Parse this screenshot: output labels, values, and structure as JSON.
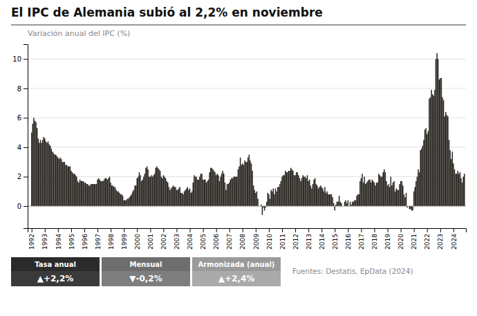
{
  "chart_data": {
    "type": "bar",
    "title": "El IPC de Alemania subió al 2,2% en noviembre",
    "subtitle": "Variación anual del IPC (%)",
    "source": "Fuentes: Destatis, EpData (2024)",
    "annotations": [
      {
        "label": "Tasa anual",
        "text": "▲+2,2%"
      },
      {
        "label": "Mensual",
        "text": "▼-0,2%"
      },
      {
        "label": "Armonizada (anual)",
        "text": "▲+2,4%"
      }
    ],
    "color": "#231f1a",
    "grid": true,
    "xlim": [
      1991.7,
      2024.95
    ],
    "xticks": [
      1992,
      1993,
      1994,
      1995,
      1996,
      1997,
      1998,
      1999,
      2000,
      2001,
      2002,
      2003,
      2004,
      2005,
      2006,
      2007,
      2008,
      2009,
      2010,
      2011,
      2012,
      2013,
      2014,
      2015,
      2016,
      2017,
      2018,
      2019,
      2020,
      2021,
      2022,
      2023,
      2024
    ],
    "ylim": [
      -1.5,
      11
    ],
    "yticks": [
      0,
      2,
      4,
      6,
      8,
      10
    ],
    "x": [
      1992,
      1992.0833333333333,
      1992.1666666666667,
      1992.25,
      1992.3333333333333,
      1992.4166666666667,
      1992.5,
      1992.5833333333333,
      1992.6666666666667,
      1992.75,
      1992.8333333333333,
      1992.9166666666667,
      1993,
      1993.0833333333333,
      1993.1666666666667,
      1993.25,
      1993.3333333333333,
      1993.4166666666667,
      1993.5,
      1993.5833333333333,
      1993.6666666666667,
      1993.75,
      1993.8333333333333,
      1993.9166666666667,
      1994,
      1994.0833333333333,
      1994.1666666666667,
      1994.25,
      1994.3333333333333,
      1994.4166666666667,
      1994.5,
      1994.5833333333333,
      1994.6666666666667,
      1994.75,
      1994.8333333333333,
      1994.9166666666667,
      1995,
      1995.0833333333333,
      1995.1666666666667,
      1995.25,
      1995.3333333333333,
      1995.4166666666667,
      1995.5,
      1995.5833333333333,
      1995.6666666666667,
      1995.75,
      1995.8333333333333,
      1995.9166666666667,
      1996,
      1996.0833333333333,
      1996.1666666666667,
      1996.25,
      1996.3333333333333,
      1996.4166666666667,
      1996.5,
      1996.5833333333333,
      1996.6666666666667,
      1996.75,
      1996.8333333333333,
      1996.9166666666667,
      1997,
      1997.0833333333333,
      1997.1666666666667,
      1997.25,
      1997.3333333333333,
      1997.4166666666667,
      1997.5,
      1997.5833333333333,
      1997.6666666666667,
      1997.75,
      1997.8333333333333,
      1997.9166666666667,
      1998,
      1998.0833333333333,
      1998.1666666666667,
      1998.25,
      1998.3333333333333,
      1998.4166666666667,
      1998.5,
      1998.5833333333333,
      1998.6666666666667,
      1998.75,
      1998.8333333333333,
      1998.9166666666667,
      1999,
      1999.0833333333333,
      1999.1666666666667,
      1999.25,
      1999.3333333333333,
      1999.4166666666667,
      1999.5,
      1999.5833333333333,
      1999.6666666666667,
      1999.75,
      1999.8333333333333,
      1999.9166666666667,
      2000,
      2000.0833333333333,
      2000.1666666666667,
      2000.25,
      2000.3333333333333,
      2000.4166666666667,
      2000.5,
      2000.5833333333333,
      2000.6666666666667,
      2000.75,
      2000.8333333333333,
      2000.9166666666667,
      2001,
      2001.0833333333333,
      2001.1666666666667,
      2001.25,
      2001.3333333333333,
      2001.4166666666667,
      2001.5,
      2001.5833333333333,
      2001.6666666666667,
      2001.75,
      2001.8333333333333,
      2001.9166666666667,
      2002,
      2002.0833333333333,
      2002.1666666666667,
      2002.25,
      2002.3333333333333,
      2002.4166666666667,
      2002.5,
      2002.5833333333333,
      2002.6666666666667,
      2002.75,
      2002.8333333333333,
      2002.9166666666667,
      2003,
      2003.0833333333333,
      2003.1666666666667,
      2003.25,
      2003.3333333333333,
      2003.4166666666667,
      2003.5,
      2003.5833333333333,
      2003.6666666666667,
      2003.75,
      2003.8333333333333,
      2003.9166666666667,
      2004,
      2004.0833333333333,
      2004.1666666666667,
      2004.25,
      2004.3333333333333,
      2004.4166666666667,
      2004.5,
      2004.5833333333333,
      2004.6666666666667,
      2004.75,
      2004.8333333333333,
      2004.9166666666667,
      2005,
      2005.0833333333333,
      2005.1666666666667,
      2005.25,
      2005.3333333333333,
      2005.4166666666667,
      2005.5,
      2005.5833333333333,
      2005.6666666666667,
      2005.75,
      2005.8333333333333,
      2005.9166666666667,
      2006,
      2006.0833333333333,
      2006.1666666666667,
      2006.25,
      2006.3333333333333,
      2006.4166666666667,
      2006.5,
      2006.5833333333333,
      2006.6666666666667,
      2006.75,
      2006.8333333333333,
      2006.9166666666667,
      2007,
      2007.0833333333333,
      2007.1666666666667,
      2007.25,
      2007.3333333333333,
      2007.4166666666667,
      2007.5,
      2007.5833333333333,
      2007.6666666666667,
      2007.75,
      2007.8333333333333,
      2007.9166666666667,
      2008,
      2008.0833333333333,
      2008.1666666666667,
      2008.25,
      2008.3333333333333,
      2008.4166666666667,
      2008.5,
      2008.5833333333333,
      2008.6666666666667,
      2008.75,
      2008.8333333333333,
      2008.9166666666667,
      2009,
      2009.0833333333333,
      2009.1666666666667,
      2009.25,
      2009.3333333333333,
      2009.4166666666667,
      2009.5,
      2009.5833333333333,
      2009.6666666666667,
      2009.75,
      2009.8333333333333,
      2009.9166666666667,
      2010,
      2010.0833333333333,
      2010.1666666666667,
      2010.25,
      2010.3333333333333,
      2010.4166666666667,
      2010.5,
      2010.5833333333333,
      2010.6666666666667,
      2010.75,
      2010.8333333333333,
      2010.9166666666667,
      2011,
      2011.0833333333333,
      2011.1666666666667,
      2011.25,
      2011.3333333333333,
      2011.4166666666667,
      2011.5,
      2011.5833333333333,
      2011.6666666666667,
      2011.75,
      2011.8333333333333,
      2011.9166666666667,
      2012,
      2012.0833333333333,
      2012.1666666666667,
      2012.25,
      2012.3333333333333,
      2012.4166666666667,
      2012.5,
      2012.5833333333333,
      2012.6666666666667,
      2012.75,
      2012.8333333333333,
      2012.9166666666667,
      2013,
      2013.0833333333333,
      2013.1666666666667,
      2013.25,
      2013.3333333333333,
      2013.4166666666667,
      2013.5,
      2013.5833333333333,
      2013.6666666666667,
      2013.75,
      2013.8333333333333,
      2013.9166666666667,
      2014,
      2014.0833333333333,
      2014.1666666666667,
      2014.25,
      2014.3333333333333,
      2014.4166666666667,
      2014.5,
      2014.5833333333333,
      2014.6666666666667,
      2014.75,
      2014.8333333333333,
      2014.9166666666667,
      2015,
      2015.0833333333333,
      2015.1666666666667,
      2015.25,
      2015.3333333333333,
      2015.4166666666667,
      2015.5,
      2015.5833333333333,
      2015.6666666666667,
      2015.75,
      2015.8333333333333,
      2015.9166666666667,
      2016,
      2016.0833333333333,
      2016.1666666666667,
      2016.25,
      2016.3333333333333,
      2016.4166666666667,
      2016.5,
      2016.5833333333333,
      2016.6666666666667,
      2016.75,
      2016.8333333333333,
      2016.9166666666667,
      2017,
      2017.0833333333333,
      2017.1666666666667,
      2017.25,
      2017.3333333333333,
      2017.4166666666667,
      2017.5,
      2017.5833333333333,
      2017.6666666666667,
      2017.75,
      2017.8333333333333,
      2017.9166666666667,
      2018,
      2018.0833333333333,
      2018.1666666666667,
      2018.25,
      2018.3333333333333,
      2018.4166666666667,
      2018.5,
      2018.5833333333333,
      2018.6666666666667,
      2018.75,
      2018.8333333333333,
      2018.9166666666667,
      2019,
      2019.0833333333333,
      2019.1666666666667,
      2019.25,
      2019.3333333333333,
      2019.4166666666667,
      2019.5,
      2019.5833333333333,
      2019.6666666666667,
      2019.75,
      2019.8333333333333,
      2019.9166666666667,
      2020,
      2020.0833333333333,
      2020.1666666666667,
      2020.25,
      2020.3333333333333,
      2020.4166666666667,
      2020.5,
      2020.5833333333333,
      2020.6666666666667,
      2020.75,
      2020.8333333333333,
      2020.9166666666667,
      2021,
      2021.0833333333333,
      2021.1666666666667,
      2021.25,
      2021.3333333333333,
      2021.4166666666667,
      2021.5,
      2021.5833333333333,
      2021.6666666666667,
      2021.75,
      2021.8333333333333,
      2021.9166666666667,
      2022,
      2022.0833333333333,
      2022.1666666666667,
      2022.25,
      2022.3333333333333,
      2022.4166666666667,
      2022.5,
      2022.5833333333333,
      2022.6666666666667,
      2022.75,
      2022.8333333333333,
      2022.9166666666667,
      2023,
      2023.0833333333333,
      2023.1666666666667,
      2023.25,
      2023.3333333333333,
      2023.4166666666667,
      2023.5,
      2023.5833333333333,
      2023.6666666666667,
      2023.75,
      2023.8333333333333,
      2023.9166666666667,
      2024,
      2024.0833333333333,
      2024.1666666666667,
      2024.25,
      2024.3333333333333,
      2024.4166666666667,
      2024.5,
      2024.5833333333333,
      2024.6666666666667,
      2024.75,
      2024.8333333333333
    ],
    "values": [
      5.0,
      5.6,
      6.0,
      5.8,
      5.7,
      5.3,
      4.6,
      4.3,
      4.5,
      4.3,
      4.5,
      4.7,
      4.6,
      4.4,
      4.3,
      4.4,
      4.2,
      4.1,
      3.9,
      3.7,
      3.6,
      3.5,
      3.5,
      3.4,
      3.3,
      3.2,
      3.3,
      3.2,
      3.0,
      3.0,
      3.0,
      2.8,
      2.8,
      2.7,
      2.7,
      2.7,
      2.4,
      2.3,
      2.2,
      2.2,
      2.1,
      2.0,
      1.7,
      1.6,
      1.8,
      1.7,
      1.7,
      1.7,
      1.6,
      1.6,
      1.5,
      1.5,
      1.4,
      1.4,
      1.5,
      1.5,
      1.5,
      1.5,
      1.5,
      1.5,
      1.8,
      1.9,
      1.8,
      1.7,
      1.7,
      1.7,
      1.8,
      1.9,
      1.9,
      1.8,
      1.9,
      2.0,
      1.6,
      1.4,
      1.4,
      1.3,
      1.3,
      1.1,
      1.0,
      1.0,
      0.9,
      0.8,
      0.8,
      0.7,
      0.4,
      0.4,
      0.4,
      0.5,
      0.5,
      0.6,
      0.7,
      0.8,
      1.0,
      1.1,
      1.4,
      1.4,
      1.9,
      2.0,
      2.3,
      2.1,
      1.7,
      1.8,
      2.0,
      2.2,
      2.6,
      2.7,
      2.5,
      2.0,
      2.0,
      2.1,
      2.0,
      2.1,
      2.2,
      2.6,
      2.7,
      2.6,
      2.5,
      2.4,
      2.0,
      1.9,
      2.1,
      2.0,
      1.9,
      1.7,
      1.6,
      1.3,
      1.1,
      1.2,
      1.3,
      1.4,
      1.3,
      1.3,
      1.1,
      1.1,
      1.2,
      1.3,
      0.9,
      0.9,
      0.8,
      1.0,
      1.1,
      1.2,
      1.3,
      1.1,
      1.2,
      0.9,
      1.0,
      1.6,
      2.1,
      2.0,
      2.0,
      1.8,
      1.8,
      2.0,
      2.2,
      2.2,
      1.8,
      1.8,
      1.8,
      1.6,
      1.7,
      1.8,
      2.3,
      2.6,
      2.6,
      2.5,
      2.4,
      2.3,
      2.1,
      2.2,
      2.1,
      1.7,
      2.0,
      2.2,
      2.4,
      2.2,
      1.6,
      1.1,
      1.5,
      1.5,
      1.6,
      1.8,
      1.9,
      1.9,
      2.0,
      2.0,
      2.0,
      2.0,
      2.5,
      2.7,
      3.3,
      2.8,
      2.9,
      2.8,
      3.1,
      3.0,
      3.0,
      3.3,
      3.5,
      3.1,
      2.9,
      2.4,
      1.4,
      1.1,
      0.9,
      1.0,
      0.5,
      0.0,
      0.0,
      0.1,
      -0.6,
      -0.1,
      -0.3,
      -0.1,
      0.3,
      0.9,
      0.8,
      0.5,
      1.1,
      1.0,
      1.2,
      0.8,
      1.2,
      1.0,
      1.3,
      1.3,
      1.5,
      1.7,
      2.0,
      2.1,
      2.1,
      2.4,
      2.3,
      2.3,
      2.4,
      2.4,
      2.6,
      2.5,
      2.4,
      2.1,
      2.1,
      2.3,
      2.3,
      2.1,
      1.9,
      1.7,
      1.9,
      2.1,
      2.0,
      2.0,
      1.9,
      2.1,
      1.7,
      1.8,
      1.4,
      1.2,
      1.5,
      1.8,
      1.9,
      1.5,
      1.4,
      1.2,
      1.3,
      1.4,
      1.3,
      1.2,
      1.0,
      1.3,
      0.9,
      1.0,
      0.8,
      0.8,
      0.8,
      0.8,
      0.6,
      0.2,
      -0.3,
      0.1,
      0.3,
      0.3,
      0.7,
      0.3,
      0.2,
      0.0,
      0.0,
      0.3,
      0.4,
      0.2,
      0.4,
      0.0,
      0.3,
      0.1,
      0.3,
      0.3,
      0.4,
      0.4,
      0.7,
      0.8,
      0.8,
      1.7,
      1.9,
      2.2,
      1.6,
      2.0,
      1.5,
      1.6,
      1.7,
      1.8,
      1.8,
      1.6,
      1.8,
      1.7,
      1.6,
      1.4,
      1.6,
      1.6,
      2.2,
      2.1,
      2.0,
      2.0,
      2.3,
      2.5,
      2.3,
      1.7,
      1.4,
      1.5,
      1.3,
      2.0,
      1.4,
      1.6,
      1.7,
      1.0,
      1.2,
      1.1,
      1.1,
      1.5,
      1.7,
      1.7,
      1.4,
      0.8,
      0.6,
      0.9,
      -0.1,
      0.0,
      -0.2,
      -0.2,
      -0.3,
      -0.3,
      1.0,
      1.3,
      1.7,
      2.0,
      2.5,
      2.3,
      3.8,
      3.9,
      4.1,
      4.5,
      5.2,
      5.3,
      4.9,
      5.1,
      7.3,
      7.4,
      7.9,
      7.6,
      7.5,
      7.9,
      10.0,
      10.4,
      10.0,
      8.6,
      8.7,
      8.7,
      7.4,
      7.2,
      6.1,
      6.4,
      6.2,
      6.1,
      4.5,
      3.8,
      3.2,
      3.7,
      2.9,
      2.5,
      2.2,
      2.2,
      2.4,
      2.2,
      2.3,
      1.9,
      1.6,
      2.0,
      2.2
    ]
  }
}
